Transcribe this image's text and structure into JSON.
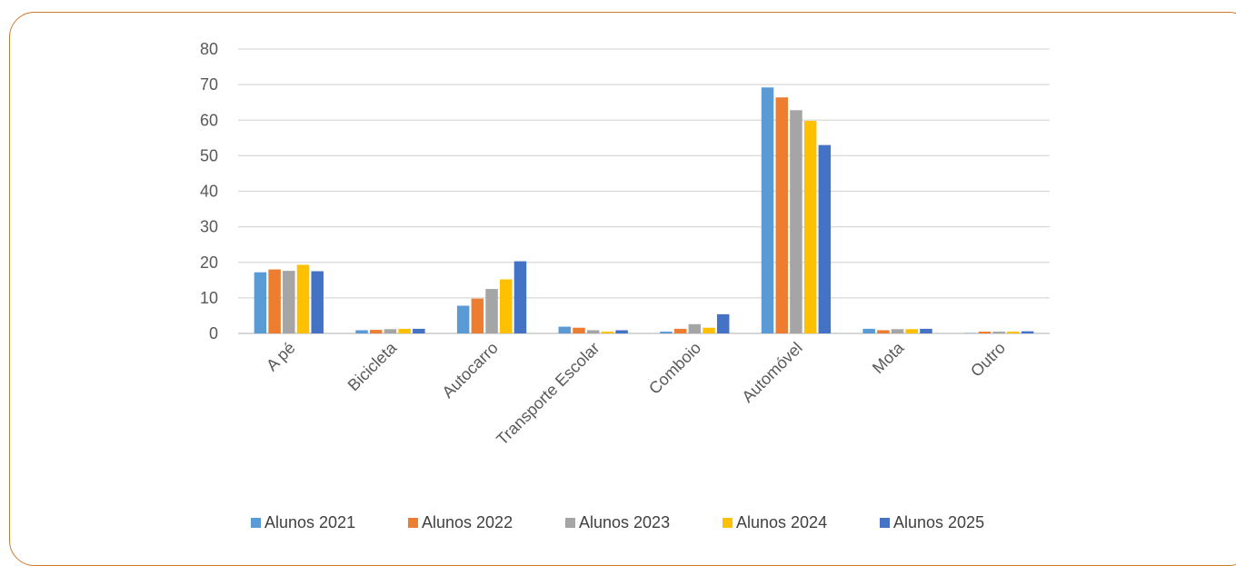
{
  "colors": {
    "frame_border": "#d07a2e",
    "gridline": "#d9d9d9",
    "text": "#595959"
  },
  "chart_data": {
    "type": "bar",
    "title": "",
    "xlabel": "",
    "ylabel": "",
    "ylim": [
      0,
      80
    ],
    "yticks": [
      0,
      10,
      20,
      30,
      40,
      50,
      60,
      70,
      80
    ],
    "grid": true,
    "legend_position": "bottom",
    "categories": [
      "A pé",
      "Bicicleta",
      "Autocarro",
      "Transporte Escolar",
      "Comboio",
      "Automóvel",
      "Mota",
      "Outro"
    ],
    "series": [
      {
        "name": "Alunos 2021",
        "color": "#5b9bd5",
        "values": [
          17.2,
          0.9,
          7.8,
          1.9,
          0.5,
          69.2,
          1.3,
          0.1
        ]
      },
      {
        "name": "Alunos 2022",
        "color": "#ed7d31",
        "values": [
          18.0,
          1.0,
          9.8,
          1.6,
          1.3,
          66.4,
          0.9,
          0.5
        ]
      },
      {
        "name": "Alunos 2023",
        "color": "#a5a5a5",
        "values": [
          17.6,
          1.2,
          12.5,
          0.9,
          2.6,
          62.8,
          1.2,
          0.5
        ]
      },
      {
        "name": "Alunos 2024",
        "color": "#ffc000",
        "values": [
          19.3,
          1.3,
          15.2,
          0.5,
          1.6,
          59.8,
          1.2,
          0.5
        ]
      },
      {
        "name": "Alunos 2025",
        "color": "#4472c4",
        "values": [
          17.5,
          1.3,
          20.3,
          0.9,
          5.4,
          53.0,
          1.3,
          0.6
        ]
      }
    ]
  }
}
